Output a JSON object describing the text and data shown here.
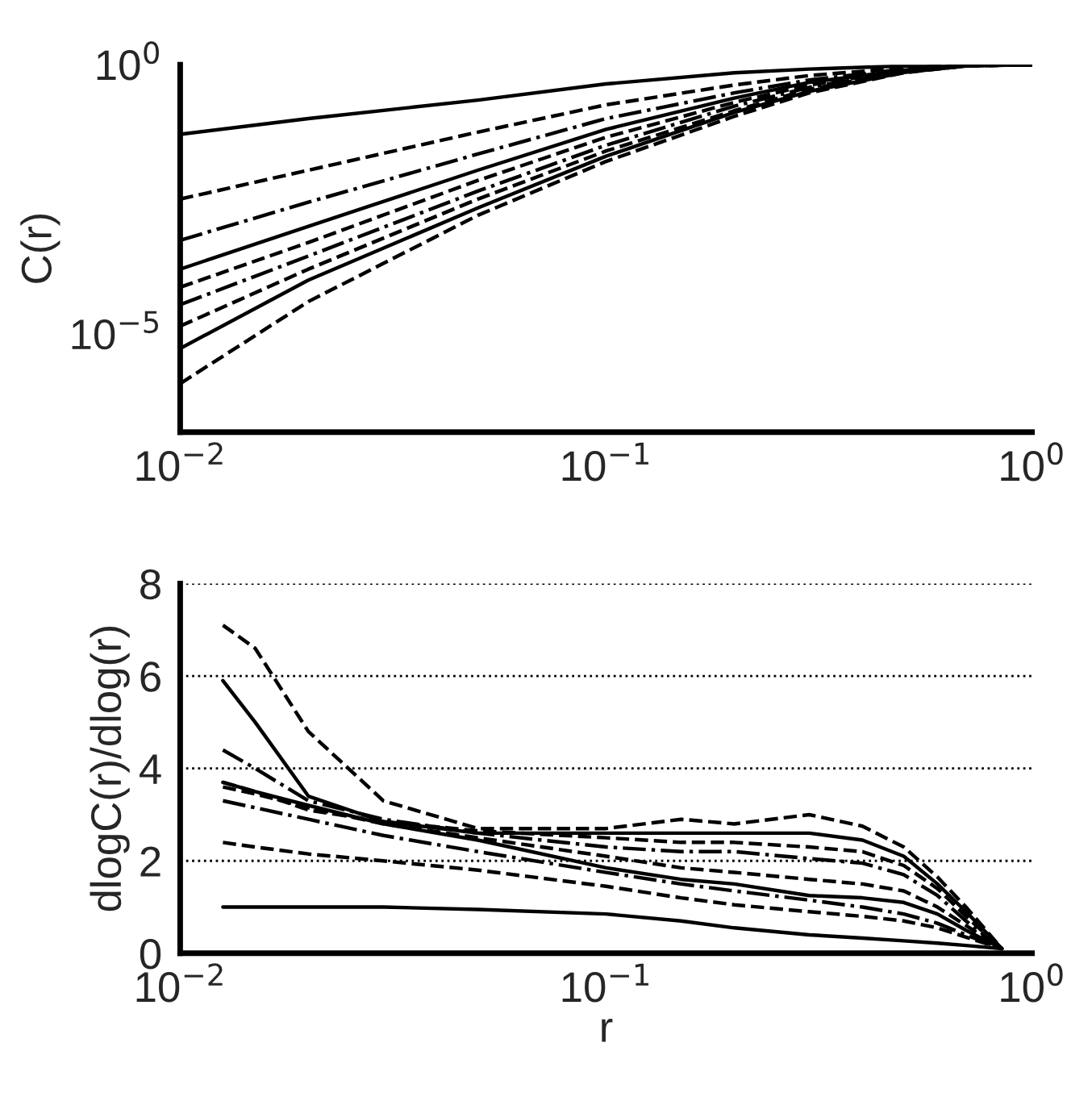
{
  "chart_data": [
    {
      "type": "line",
      "ylabel": "C(r)",
      "log": "xy",
      "xlim": [
        0.01,
        1
      ],
      "ylim": [
        1.5e-07,
        1
      ],
      "xticks": [
        {
          "value": 0.01,
          "label": "10$^{−2}$"
        },
        {
          "value": 0.1,
          "label": "10$^{−1}$"
        },
        {
          "value": 1,
          "label": "10$^{0}$"
        }
      ],
      "yticks": [
        {
          "value": 1e-05,
          "label": "10$^{−5}$"
        },
        {
          "value": 1,
          "label": "10$^{0}$"
        }
      ],
      "grid": false,
      "legend": false,
      "x": [
        0.01,
        0.02,
        0.05,
        0.1,
        0.2,
        0.3,
        0.5,
        0.7,
        1
      ],
      "series": [
        {
          "color": "#000000",
          "line_style": "solid",
          "values": [
            0.051,
            0.1,
            0.22,
            0.44,
            0.71,
            0.83,
            0.95,
            1,
            1
          ]
        },
        {
          "color": "#000000",
          "line_style": "dashed",
          "values": [
            0.0032,
            0.011,
            0.056,
            0.18,
            0.42,
            0.63,
            0.87,
            1,
            1
          ]
        },
        {
          "color": "#000000",
          "line_style": "dashdot",
          "values": [
            0.00055,
            0.0028,
            0.022,
            0.1,
            0.3,
            0.52,
            0.83,
            0.98,
            1
          ]
        },
        {
          "color": "#000000",
          "line_style": "solid",
          "values": [
            0.00016,
            0.001,
            0.011,
            0.063,
            0.24,
            0.47,
            0.79,
            0.98,
            1
          ]
        },
        {
          "color": "#000000",
          "line_style": "dashed",
          "values": [
            7.4e-05,
            0.0005,
            0.0071,
            0.045,
            0.2,
            0.42,
            0.78,
            0.98,
            1
          ]
        },
        {
          "color": "#000000",
          "line_style": "dashdot",
          "values": [
            3.5e-05,
            0.00028,
            0.0045,
            0.032,
            0.17,
            0.38,
            0.76,
            0.98,
            1
          ]
        },
        {
          "color": "#000000",
          "line_style": "dashed",
          "values": [
            1.4e-05,
            0.00016,
            0.0032,
            0.025,
            0.14,
            0.35,
            0.74,
            0.95,
            1
          ]
        },
        {
          "color": "#000000",
          "line_style": "solid",
          "values": [
            5.4e-06,
            0.0001,
            0.0022,
            0.02,
            0.13,
            0.32,
            0.72,
            0.95,
            1
          ]
        },
        {
          "color": "#000000",
          "line_style": "dashed",
          "values": [
            1.2e-06,
            4e-05,
            0.0016,
            0.016,
            0.11,
            0.3,
            0.71,
            0.95,
            1
          ]
        }
      ]
    },
    {
      "type": "line",
      "xlabel": "r",
      "ylabel": "dlogC(r)/dlog(r)",
      "log": "x",
      "xlim": [
        0.01,
        1
      ],
      "ylim": [
        0,
        8
      ],
      "xticks": [
        {
          "value": 0.01,
          "label": "10$^{−2}$"
        },
        {
          "value": 0.1,
          "label": "10$^{−1}$"
        },
        {
          "value": 1,
          "label": "10$^{0}$"
        }
      ],
      "yticks": [
        0,
        2,
        4,
        6,
        8
      ],
      "grid": "y",
      "legend": false,
      "x": [
        0.0126,
        0.015,
        0.02,
        0.03,
        0.05,
        0.1,
        0.15,
        0.2,
        0.3,
        0.4,
        0.5,
        0.6,
        0.7,
        0.85
      ],
      "series": [
        {
          "color": "#000000",
          "line_style": "solid",
          "values": [
            1.0,
            1.0,
            1.0,
            1.0,
            0.95,
            0.85,
            0.7,
            0.55,
            0.4,
            0.33,
            0.27,
            0.22,
            0.17,
            0.1
          ]
        },
        {
          "color": "#000000",
          "line_style": "dashed",
          "values": [
            2.4,
            2.3,
            2.15,
            2.0,
            1.8,
            1.45,
            1.2,
            1.05,
            0.9,
            0.8,
            0.7,
            0.55,
            0.35,
            0.1
          ]
        },
        {
          "color": "#000000",
          "line_style": "dashdot",
          "values": [
            3.3,
            3.15,
            2.9,
            2.55,
            2.2,
            1.75,
            1.5,
            1.35,
            1.15,
            1.0,
            0.85,
            0.65,
            0.4,
            0.1
          ]
        },
        {
          "color": "#000000",
          "line_style": "solid",
          "values": [
            3.7,
            3.5,
            3.2,
            2.8,
            2.45,
            1.85,
            1.6,
            1.5,
            1.25,
            1.2,
            1.1,
            0.85,
            0.5,
            0.1
          ]
        },
        {
          "color": "#000000",
          "line_style": "dashed",
          "values": [
            3.6,
            3.45,
            3.15,
            2.8,
            2.5,
            2.1,
            1.85,
            1.75,
            1.6,
            1.5,
            1.35,
            1.0,
            0.6,
            0.1
          ]
        },
        {
          "color": "#000000",
          "line_style": "dashdot",
          "values": [
            4.4,
            4.0,
            3.3,
            2.9,
            2.6,
            2.3,
            2.2,
            2.2,
            2.05,
            1.95,
            1.7,
            1.25,
            0.7,
            0.1
          ]
        },
        {
          "color": "#000000",
          "line_style": "dashed",
          "values": [
            3.7,
            3.5,
            3.1,
            2.85,
            2.65,
            2.5,
            2.4,
            2.4,
            2.3,
            2.2,
            1.9,
            1.4,
            0.8,
            0.1
          ]
        },
        {
          "color": "#000000",
          "line_style": "solid",
          "values": [
            5.9,
            5.0,
            3.4,
            2.85,
            2.6,
            2.6,
            2.6,
            2.6,
            2.6,
            2.45,
            2.1,
            1.5,
            0.9,
            0.1
          ]
        },
        {
          "color": "#000000",
          "line_style": "dashed",
          "values": [
            7.1,
            6.6,
            4.8,
            3.3,
            2.7,
            2.7,
            2.9,
            2.8,
            3.0,
            2.75,
            2.3,
            1.65,
            1.0,
            0.1
          ]
        }
      ]
    }
  ]
}
